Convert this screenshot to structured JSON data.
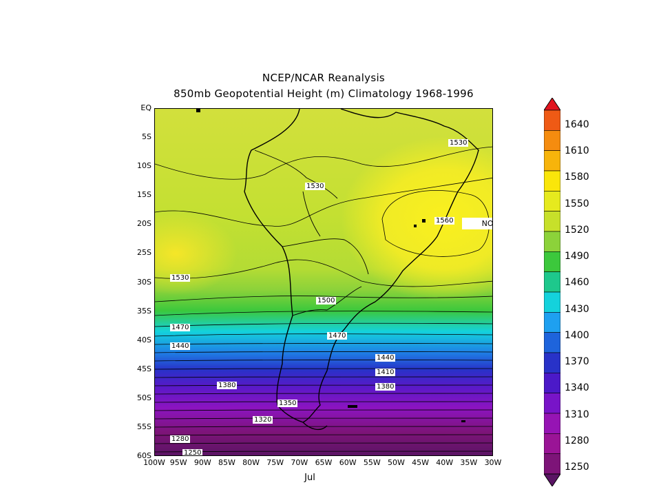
{
  "title": {
    "line1": "NCEP/NCAR Reanalysis",
    "line2": "850mb Geopotential Height (m) Climatology 1968-1996"
  },
  "credit": "NOAA/ESRL Physical Sciences Division",
  "month": "Jul",
  "axes": {
    "lat_labels": [
      "EQ",
      "5S",
      "10S",
      "15S",
      "20S",
      "25S",
      "30S",
      "35S",
      "40S",
      "45S",
      "50S",
      "55S",
      "60S"
    ],
    "lon_labels": [
      "100W",
      "95W",
      "90W",
      "85W",
      "80W",
      "75W",
      "70W",
      "65W",
      "60W",
      "55W",
      "50W",
      "45W",
      "40W",
      "35W",
      "30W"
    ],
    "lat_range": [
      -60,
      0
    ],
    "lon_range": [
      -100,
      -30
    ]
  },
  "contour_labels": [
    "1530",
    "1530",
    "1560",
    "1530",
    "1500",
    "1470",
    "1470",
    "1440",
    "1440",
    "1410",
    "1380",
    "1380",
    "1350",
    "1320",
    "1280",
    "1250"
  ],
  "colorbar": {
    "levels": [
      "1640",
      "1610",
      "1580",
      "1550",
      "1520",
      "1490",
      "1460",
      "1430",
      "1400",
      "1370",
      "1340",
      "1310",
      "1280",
      "1250"
    ],
    "colors": [
      "#e1141e",
      "#ef5a15",
      "#f58c0f",
      "#f7b40b",
      "#fae60a",
      "#e6ea1e",
      "#c7e02a",
      "#8cd23a",
      "#3cc83c",
      "#1ec88c",
      "#14d2dc",
      "#1ea0f0",
      "#1e64dc",
      "#2832c8",
      "#4b19c8",
      "#7814c8",
      "#9614b4",
      "#9a1496",
      "#7d1478",
      "#5a1464"
    ]
  },
  "map_colors": {
    "eq_band": "#d2e03c",
    "high_core": "#faf01e",
    "mid": "#a8dc37",
    "green": "#3cc83c",
    "cyan": "#14d2dc",
    "blue": "#1e64dc",
    "indigo": "#4b19c8",
    "purple": "#9614b4",
    "dark_purple": "#5a1464"
  }
}
